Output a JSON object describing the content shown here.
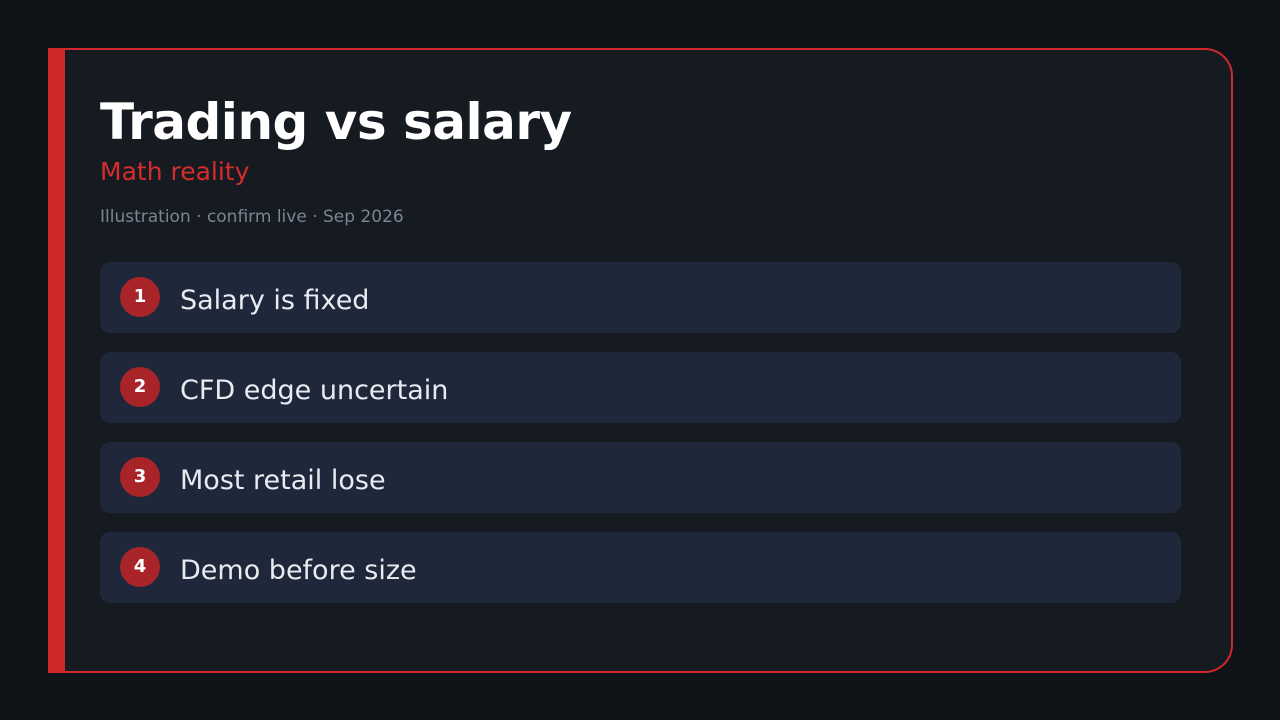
{
  "slide": {
    "title": "Trading vs salary",
    "subtitle": "Math reality",
    "meta": "Illustration · confirm live · Sep 2026",
    "items": [
      {
        "number": "1",
        "label": "Salary is fixed"
      },
      {
        "number": "2",
        "label": "CFD edge uncertain"
      },
      {
        "number": "3",
        "label": "Most retail lose"
      },
      {
        "number": "4",
        "label": "Demo before size"
      }
    ]
  },
  "colors": {
    "background": "#0f1318",
    "card": "#161a21",
    "accent": "#d0292c",
    "badge": "#a82428",
    "item_background": "#1f283a",
    "title_text": "#ffffff",
    "meta_text": "#7b8593"
  }
}
